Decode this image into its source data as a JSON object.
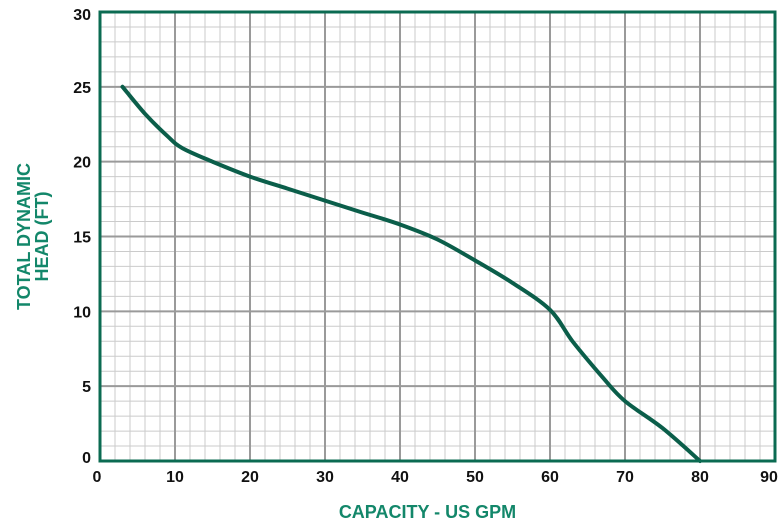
{
  "chart_data": {
    "type": "line",
    "title": "",
    "xlabel": "CAPACITY - US GPM",
    "ylabel_lines": [
      "TOTAL DYNAMIC",
      "HEAD (FT)"
    ],
    "xlim": [
      0,
      90
    ],
    "ylim": [
      0,
      30
    ],
    "x_ticks": [
      0,
      10,
      20,
      30,
      40,
      50,
      60,
      70,
      80,
      90
    ],
    "y_ticks": [
      0,
      5,
      10,
      15,
      20,
      25,
      30
    ],
    "x_minor_step": 2,
    "y_minor_step": 1,
    "grid": true,
    "series": [
      {
        "x": [
          3,
          6,
          9,
          11,
          15,
          20,
          25,
          30,
          35,
          40,
          45,
          50,
          55,
          60,
          63,
          67,
          70,
          75,
          80
        ],
        "y": [
          25,
          23.2,
          21.7,
          20.9,
          20,
          19,
          18.2,
          17.4,
          16.6,
          15.8,
          14.8,
          13.4,
          11.9,
          10.1,
          8,
          5.6,
          4,
          2.2,
          0
        ]
      }
    ],
    "colors": {
      "curve": "#0b5e4a",
      "frame": "#0b6b52",
      "axis_title": "#13876a",
      "major_grid": "#9a9a9a",
      "minor_grid": "#cbcbcb"
    }
  }
}
